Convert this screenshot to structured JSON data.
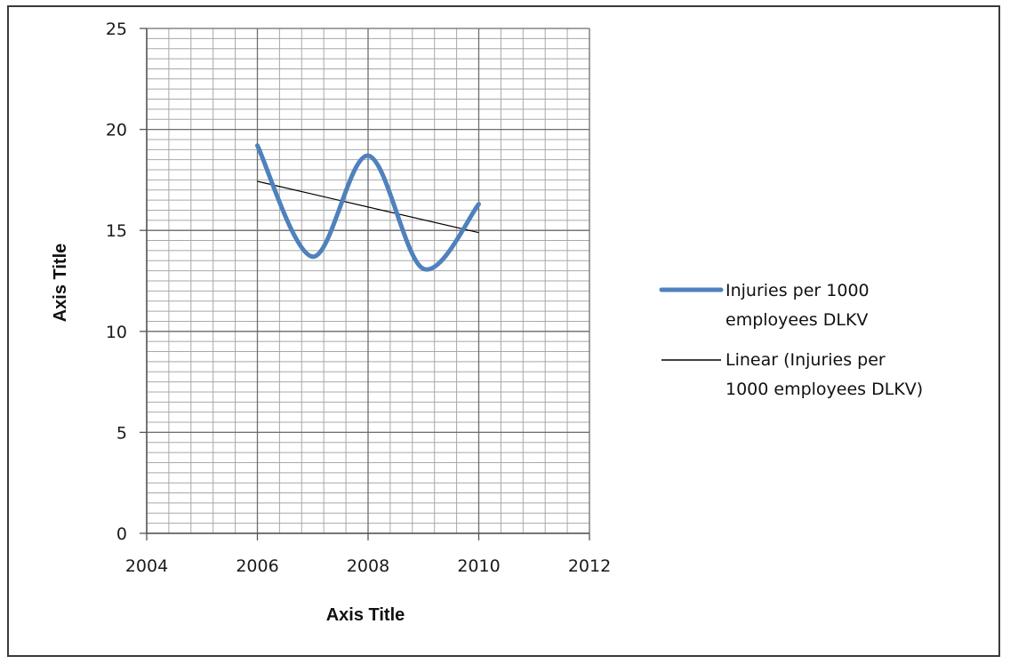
{
  "chart_data": {
    "type": "scatter",
    "xlabel": "Axis Title",
    "ylabel": "Axis Title",
    "xlim": [
      2004,
      2012
    ],
    "ylim": [
      0,
      25
    ],
    "x_ticks": [
      2004,
      2006,
      2008,
      2010,
      2012
    ],
    "y_ticks": [
      0,
      5,
      10,
      15,
      20,
      25
    ],
    "grid": true,
    "smooth": true,
    "legend_position": "right",
    "series": [
      {
        "name": "Injuries per 1000 employees DLKV",
        "x": [
          2006,
          2007,
          2008,
          2009,
          2010
        ],
        "y": [
          19.2,
          13.7,
          18.7,
          13.1,
          16.3
        ],
        "color": "#4f81bd"
      }
    ],
    "trendline": {
      "name": "Linear (Injuries per 1000 employees DLKV)",
      "type": "linear",
      "x": [
        2006,
        2010
      ],
      "y": [
        17.43,
        14.89
      ],
      "color": "#000000"
    },
    "legend_entries": [
      {
        "lines": [
          "Injuries per 1000",
          "employees DLKV"
        ]
      },
      {
        "lines": [
          "Linear (Injuries per",
          "1000 employees DLKV)"
        ]
      }
    ]
  }
}
